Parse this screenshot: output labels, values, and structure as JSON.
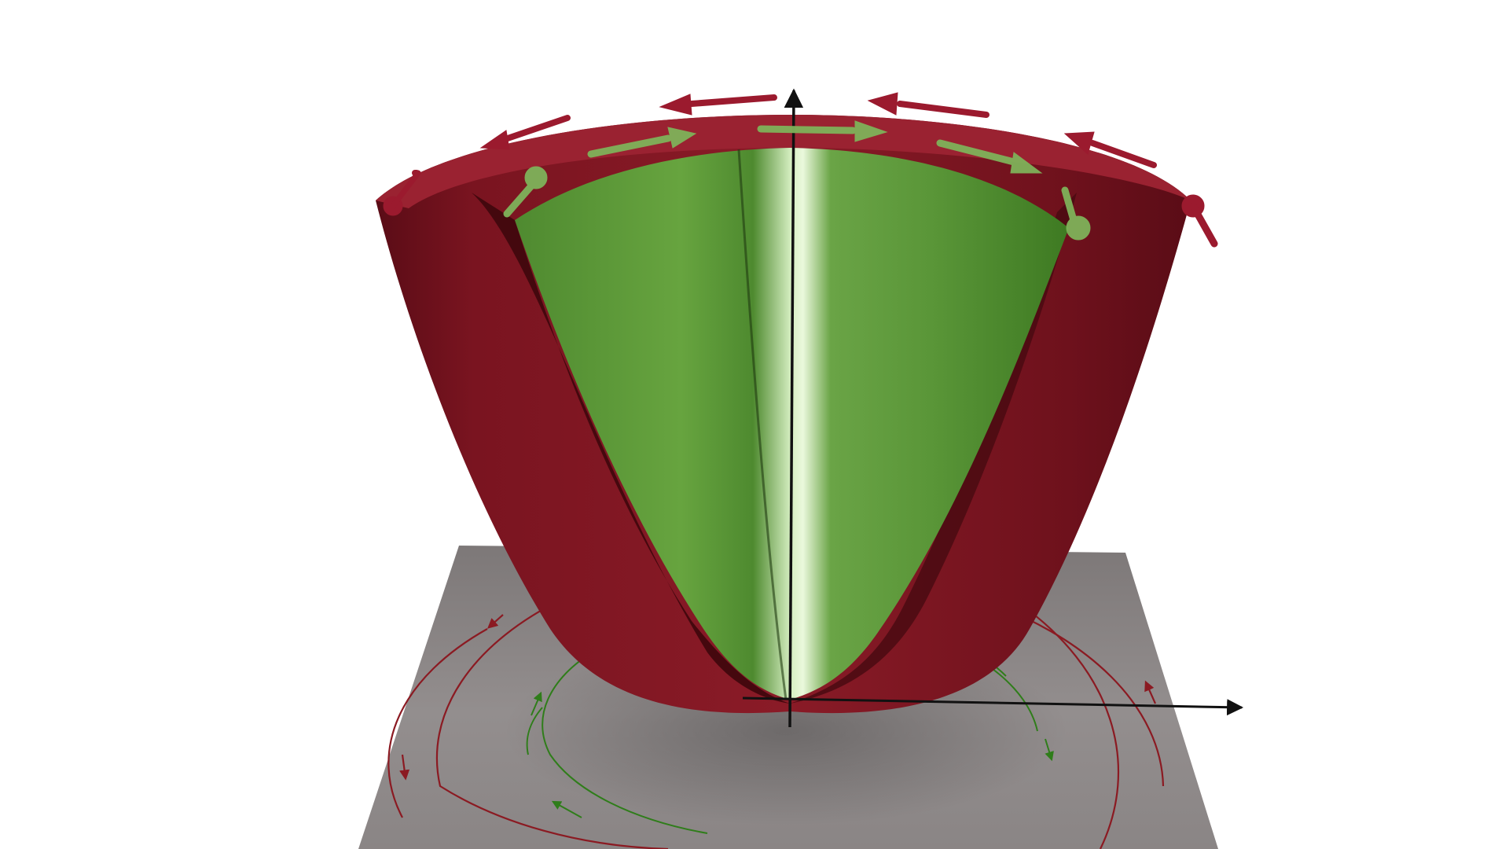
{
  "figure": {
    "description_free": true,
    "colors": {
      "background": "#ffffff",
      "outer_surface": "#7a1420",
      "outer_surface_dark": "#3e070c",
      "inner_surface": "#5a9a38",
      "inner_highlight": "#e6f6d4",
      "floor_plane": "#8e8a8a",
      "axis": "#111111",
      "outer_arrow": "#9b1a2e",
      "inner_arrow": "#7fb25a",
      "outer_flow": "#8b1a22",
      "inner_flow": "#2f7d1a"
    },
    "elements": {
      "outer_paraboloid": "band-outer",
      "inner_paraboloid": "band-inner",
      "vertical_axis": "z-axis",
      "horizontal_axis": "x-axis",
      "floor": "ground-plane"
    },
    "outer_rim_arrow_count": 8,
    "inner_rim_arrow_count": 6,
    "outer_flow_circle_count": 2,
    "inner_flow_circle_count": 2
  }
}
